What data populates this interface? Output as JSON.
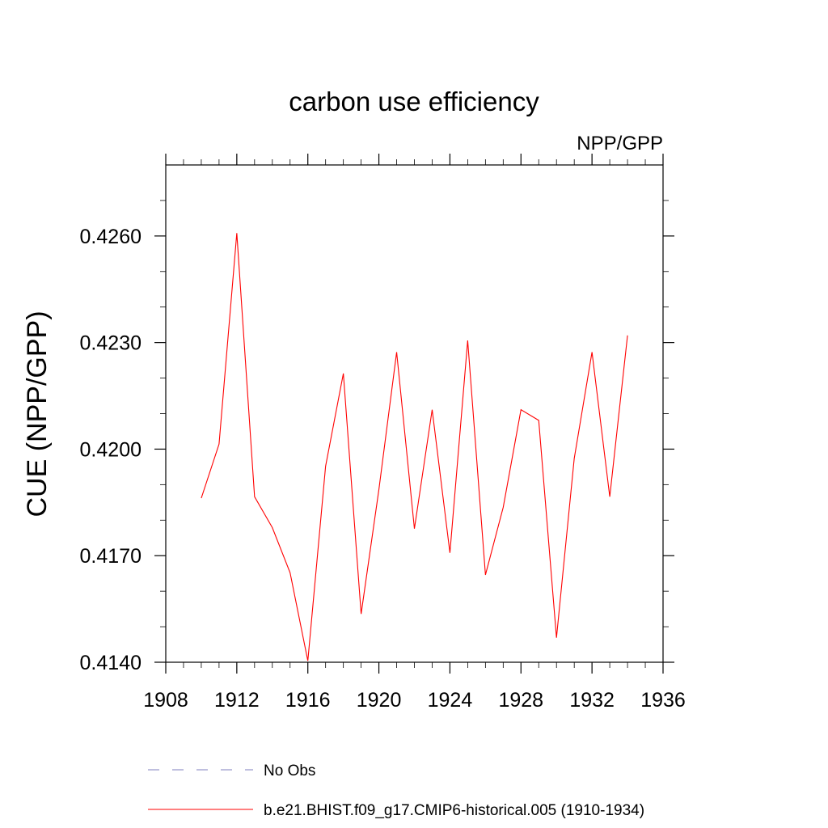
{
  "chart_data": {
    "type": "line",
    "title": "carbon use efficiency",
    "subtitle": "NPP/GPP",
    "xlabel": "",
    "ylabel": "CUE  (NPP/GPP)",
    "xlim": [
      1908,
      1936
    ],
    "ylim": [
      0.414,
      0.428
    ],
    "x_ticks": [
      1908,
      1912,
      1916,
      1920,
      1924,
      1928,
      1932,
      1936
    ],
    "x_tick_labels": [
      "1908",
      "1912",
      "1916",
      "1920",
      "1924",
      "1928",
      "1932",
      "1936"
    ],
    "y_ticks": [
      0.414,
      0.417,
      0.42,
      0.423,
      0.426
    ],
    "y_tick_labels": [
      "0.4140",
      "0.4170",
      "0.4200",
      "0.4230",
      "0.4260"
    ],
    "grid": false,
    "legend": {
      "placement": "bottom",
      "entries": [
        {
          "label": "No Obs",
          "color": "#7f7fbf",
          "dash": "dashed"
        },
        {
          "label": "b.e21.BHIST.f09_g17.CMIP6-historical.005 (1910-1934)",
          "color": "#ff0000",
          "dash": "solid"
        }
      ]
    },
    "series": [
      {
        "name": "b.e21.BHIST.f09_g17.CMIP6-historical.005 (1910-1934)",
        "color": "#ff0000",
        "x": [
          1910,
          1911,
          1912,
          1913,
          1914,
          1915,
          1916,
          1917,
          1918,
          1919,
          1920,
          1921,
          1922,
          1923,
          1924,
          1925,
          1926,
          1927,
          1928,
          1929,
          1930,
          1931,
          1932,
          1933,
          1934
        ],
        "y": [
          0.41862,
          0.42014,
          0.42608,
          0.41866,
          0.41779,
          0.41652,
          0.41404,
          0.41952,
          0.42213,
          0.41536,
          0.41886,
          0.42273,
          0.41776,
          0.42111,
          0.41708,
          0.42306,
          0.41646,
          0.41836,
          0.42111,
          0.42081,
          0.41469,
          0.41974,
          0.42273,
          0.41866,
          0.4232
        ]
      }
    ]
  }
}
